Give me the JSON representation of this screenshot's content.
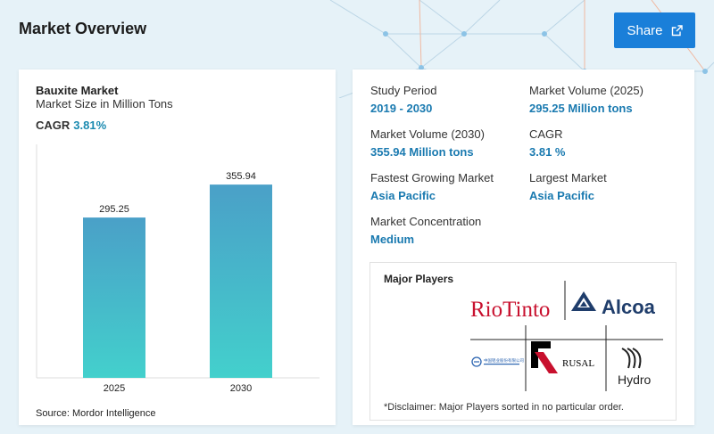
{
  "header": {
    "title": "Market Overview",
    "share_label": "Share"
  },
  "left_card": {
    "title": "Bauxite Market",
    "subtitle": "Market Size in Million Tons",
    "cagr_label": "CAGR",
    "cagr_value": "3.81%",
    "source": "Source: Mordor Intelligence"
  },
  "chart_data": {
    "type": "bar",
    "categories": [
      "2025",
      "2030"
    ],
    "values": [
      295.25,
      355.94
    ],
    "value_labels": [
      "295.25",
      "355.94"
    ],
    "title": "",
    "xlabel": "",
    "ylabel": "",
    "ylim": [
      0,
      430
    ],
    "grid": false,
    "bar_gradient": [
      "#4aa0c8",
      "#43d0cc"
    ]
  },
  "stats": {
    "study_period": {
      "label": "Study Period",
      "value": "2019 - 2030"
    },
    "volume_2025": {
      "label": "Market Volume (2025)",
      "value": "295.25 Million tons"
    },
    "volume_2030": {
      "label": "Market Volume (2030)",
      "value": "355.94 Million tons"
    },
    "cagr": {
      "label": "CAGR",
      "value": "3.81 %"
    },
    "fastest": {
      "label": "Fastest Growing Market",
      "value": "Asia Pacific"
    },
    "largest": {
      "label": "Largest Market",
      "value": "Asia Pacific"
    },
    "concentration": {
      "label": "Market Concentration",
      "value": "Medium"
    }
  },
  "players": {
    "title": "Major Players",
    "disclaimer": "*Disclaimer: Major Players sorted in no particular order.",
    "logos": {
      "riotinto": "RioTinto",
      "alcoa": "Alcoa",
      "chalco": "中国铝业股份有限公司",
      "rusal": "RUSAL",
      "hydro": "Hydro"
    }
  },
  "colors": {
    "accent": "#1a7ab0",
    "share_bg": "#1a7fd9",
    "page_bg": "#e6f2f8",
    "riotinto_red": "#c8102e",
    "alcoa_navy": "#1f3d6b"
  },
  "icons": {
    "share": "external-link-icon"
  }
}
